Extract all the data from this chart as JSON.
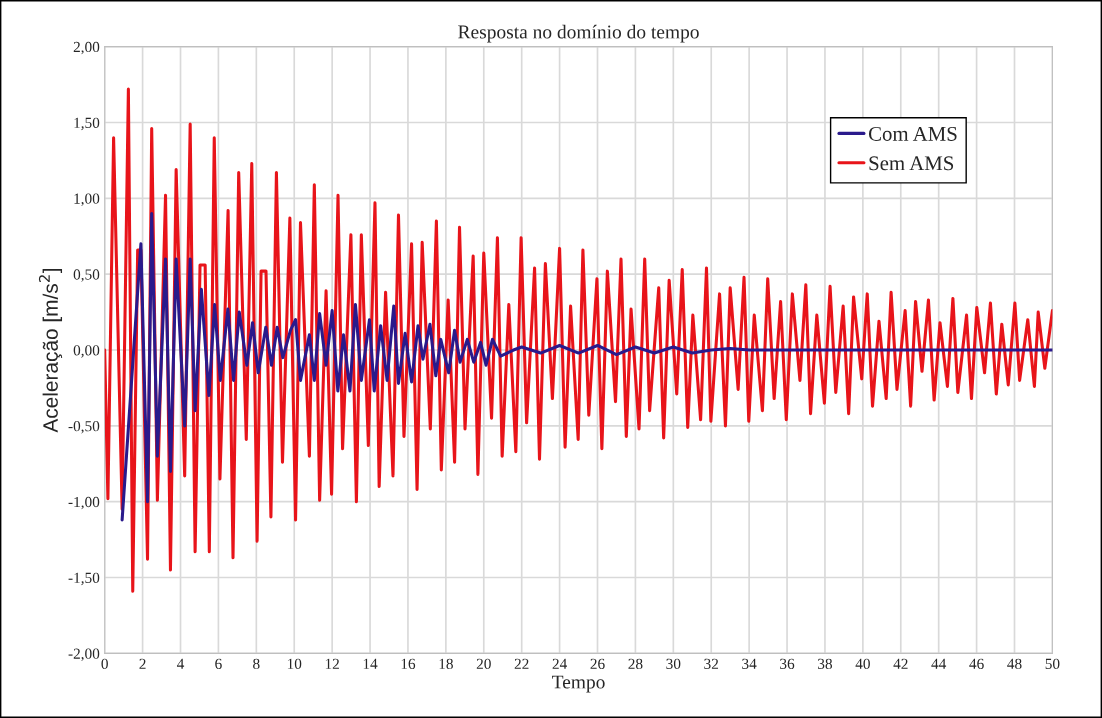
{
  "chart_data": {
    "type": "line",
    "title": "Resposta no domínio do tempo",
    "xlabel": "Tempo",
    "ylabel": "Aceleração [m/s$^{2}$]",
    "xlim": [
      0,
      50
    ],
    "xticks": [
      0,
      2,
      4,
      6,
      8,
      10,
      12,
      14,
      16,
      18,
      20,
      22,
      24,
      26,
      28,
      30,
      32,
      34,
      36,
      38,
      40,
      42,
      44,
      46,
      48,
      50
    ],
    "ylim": [
      -2,
      2
    ],
    "yticks": [
      {
        "value": -2,
        "label": "-2,00"
      },
      {
        "value": -1.5,
        "label": "-1,50"
      },
      {
        "value": -1,
        "label": "-1,00"
      },
      {
        "value": -0.5,
        "label": "-0,50"
      },
      {
        "value": 0,
        "label": "0,00"
      },
      {
        "value": 0.5,
        "label": "0,50"
      },
      {
        "value": 1,
        "label": "1,00"
      },
      {
        "value": 1.5,
        "label": "1,50"
      },
      {
        "value": 2,
        "label": "2,00"
      }
    ],
    "grid": true,
    "legend": "top right",
    "marker": "none",
    "line_style": "solid",
    "series": [
      {
        "name": "Com AMS",
        "color": "#2a1a8c",
        "x": [
          0.92,
          1.91,
          2.26,
          2.48,
          2.78,
          3.21,
          3.47,
          3.77,
          4.22,
          4.51,
          4.77,
          5.1,
          5.5,
          5.8,
          6.1,
          6.5,
          6.8,
          7.1,
          7.5,
          7.8,
          8.1,
          8.5,
          8.8,
          9.1,
          9.4,
          9.8,
          10.07,
          10.33,
          10.8,
          11.06,
          11.34,
          11.68,
          12.0,
          12.3,
          12.6,
          12.94,
          13.23,
          13.54,
          13.97,
          14.22,
          14.56,
          14.9,
          15.25,
          15.5,
          15.85,
          16.19,
          16.53,
          16.79,
          17.16,
          17.47,
          17.73,
          18.15,
          18.46,
          18.75,
          19.13,
          19.47,
          19.83,
          20.12,
          20.46,
          20.89,
          21.57,
          22,
          23,
          24,
          25,
          26,
          27,
          28,
          29,
          30,
          31,
          32,
          33,
          34,
          50
        ],
        "values": [
          -1.12,
          0.7,
          -1.0,
          0.9,
          -0.7,
          0.6,
          -0.8,
          0.6,
          -0.5,
          0.6,
          -0.4,
          0.4,
          -0.3,
          0.3,
          -0.2,
          0.27,
          -0.2,
          0.25,
          -0.1,
          0.18,
          -0.15,
          0.15,
          -0.1,
          0.15,
          -0.05,
          0.13,
          0.2,
          -0.2,
          0.1,
          -0.2,
          0.24,
          -0.1,
          0.26,
          -0.27,
          0.1,
          -0.27,
          0.3,
          -0.2,
          0.2,
          -0.27,
          0.16,
          -0.2,
          0.29,
          -0.22,
          0.11,
          -0.21,
          0.16,
          -0.06,
          0.17,
          -0.17,
          0.07,
          -0.15,
          0.13,
          -0.08,
          0.07,
          -0.08,
          0.05,
          -0.1,
          0.07,
          -0.04,
          0.0,
          0.02,
          -0.02,
          0.03,
          -0.02,
          0.03,
          -0.03,
          0.02,
          -0.02,
          0.02,
          -0.02,
          0.0,
          0.01,
          0,
          0
        ]
      },
      {
        "name": "Sem AMS",
        "color": "#e8141a",
        "x": [
          0,
          0.17,
          0.47,
          0.92,
          1.25,
          1.48,
          1.74,
          1.91,
          2.26,
          2.48,
          2.78,
          3.21,
          3.47,
          3.77,
          4.22,
          4.51,
          4.77,
          5.03,
          5.3,
          5.52,
          5.78,
          6.08,
          6.51,
          6.77,
          7.07,
          7.47,
          7.76,
          8.04,
          8.25,
          8.51,
          8.77,
          9.06,
          9.38,
          9.77,
          10.07,
          10.33,
          10.8,
          11.06,
          11.34,
          11.68,
          11.97,
          12.31,
          12.55,
          12.99,
          13.28,
          13.54,
          13.91,
          14.26,
          14.48,
          14.82,
          15.21,
          15.5,
          15.79,
          16.19,
          16.48,
          16.75,
          17.18,
          17.5,
          17.76,
          18.12,
          18.46,
          18.72,
          19.01,
          19.44,
          19.69,
          20.0,
          20.41,
          20.72,
          20.97,
          21.32,
          21.69,
          21.97,
          22.26,
          22.68,
          22.94,
          23.25,
          23.62,
          24.0,
          24.29,
          24.58,
          24.98,
          25.23,
          25.54,
          25.97,
          26.23,
          26.52,
          26.95,
          27.24,
          27.52,
          27.77,
          28.19,
          28.49,
          28.75,
          29.23,
          29.49,
          29.78,
          30.18,
          30.47,
          30.76,
          31.03,
          31.44,
          31.75,
          31.98,
          32.44,
          32.75,
          33.0,
          33.42,
          33.73,
          33.98,
          34.27,
          34.7,
          34.98,
          35.32,
          35.66,
          35.96,
          36.28,
          36.68,
          36.99,
          37.24,
          37.57,
          37.97,
          38.27,
          38.57,
          38.96,
          39.25,
          39.51,
          39.94,
          40.23,
          40.51,
          40.85,
          41.23,
          41.49,
          41.8,
          42.23,
          42.52,
          42.78,
          43.12,
          43.46,
          43.76,
          44.07,
          44.46,
          44.75,
          45.01,
          45.47,
          45.73,
          46.01,
          46.42,
          46.73,
          47.04,
          47.33,
          47.67,
          48.02,
          48.27,
          48.7,
          49.05,
          49.25,
          49.6,
          50
        ],
        "values": [
          0,
          -0.98,
          1.4,
          -1.05,
          1.72,
          -1.59,
          0.66,
          0.66,
          -1.38,
          1.46,
          -0.99,
          1.02,
          -1.45,
          1.19,
          -0.83,
          1.49,
          -1.33,
          0.56,
          0.56,
          -1.33,
          1.4,
          -0.85,
          0.92,
          -1.37,
          1.17,
          -0.59,
          1.23,
          -1.26,
          0.52,
          0.52,
          -1.1,
          1.17,
          -0.74,
          0.87,
          -1.12,
          0.84,
          -0.7,
          1.09,
          -0.99,
          0.39,
          -0.95,
          1.02,
          -0.65,
          0.76,
          -1.0,
          0.76,
          -0.63,
          0.97,
          -0.9,
          0.38,
          -0.83,
          0.89,
          -0.57,
          0.7,
          -0.92,
          0.71,
          -0.52,
          0.85,
          -0.79,
          0.33,
          -0.74,
          0.81,
          -0.52,
          0.62,
          -0.82,
          0.64,
          -0.45,
          0.74,
          -0.7,
          0.3,
          -0.67,
          0.74,
          -0.48,
          0.54,
          -0.72,
          0.57,
          -0.32,
          0.67,
          -0.64,
          0.29,
          -0.59,
          0.66,
          -0.43,
          0.47,
          -0.65,
          0.52,
          -0.34,
          0.6,
          -0.57,
          0.27,
          -0.52,
          0.6,
          -0.4,
          0.41,
          -0.58,
          0.46,
          -0.29,
          0.53,
          -0.51,
          0.23,
          -0.46,
          0.54,
          -0.47,
          0.37,
          -0.5,
          0.41,
          -0.26,
          0.48,
          -0.47,
          0.23,
          -0.4,
          0.47,
          -0.32,
          0.32,
          -0.46,
          0.37,
          -0.2,
          0.43,
          -0.42,
          0.23,
          -0.35,
          0.42,
          -0.28,
          0.29,
          -0.42,
          0.35,
          -0.19,
          0.37,
          -0.37,
          0.19,
          -0.32,
          0.38,
          -0.26,
          0.26,
          -0.37,
          0.32,
          -0.14,
          0.33,
          -0.33,
          0.18,
          -0.24,
          0.34,
          -0.28,
          0.23,
          -0.32,
          0.28,
          -0.15,
          0.31,
          -0.29,
          0.17,
          -0.23,
          0.31,
          -0.2,
          0.2,
          -0.24,
          0.25,
          -0.12,
          0.26
        ]
      }
    ]
  }
}
